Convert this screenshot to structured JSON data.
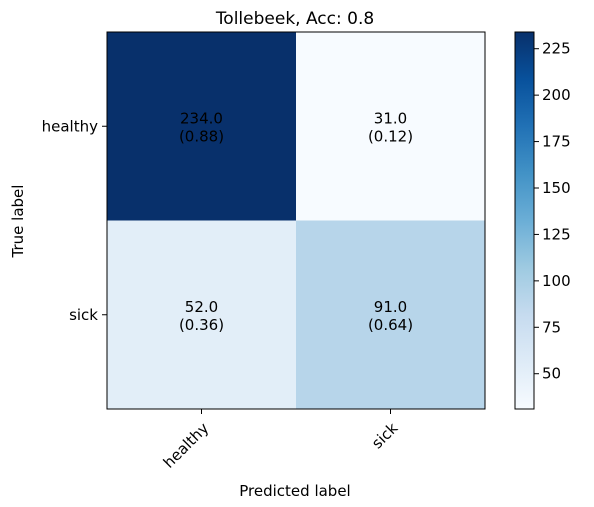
{
  "chart_data": {
    "type": "heatmap",
    "title": "Tollebeek, Acc: 0.8",
    "xlabel": "Predicted label",
    "ylabel": "True label",
    "x_categories": [
      "healthy",
      "sick"
    ],
    "y_categories": [
      "healthy",
      "sick"
    ],
    "cells": [
      [
        {
          "count": 234.0,
          "count_label": "234.0",
          "ratio": 0.88,
          "ratio_label": "(0.88)"
        },
        {
          "count": 31.0,
          "count_label": "31.0",
          "ratio": 0.12,
          "ratio_label": "(0.12)"
        }
      ],
      [
        {
          "count": 52.0,
          "count_label": "52.0",
          "ratio": 0.36,
          "ratio_label": "(0.36)"
        },
        {
          "count": 91.0,
          "count_label": "91.0",
          "ratio": 0.64,
          "ratio_label": "(0.64)"
        }
      ]
    ],
    "colormap": "Blues",
    "colorbar": {
      "range": [
        31,
        234
      ],
      "ticks": [
        50,
        75,
        100,
        125,
        150,
        175,
        200,
        225
      ]
    },
    "grid": false
  }
}
